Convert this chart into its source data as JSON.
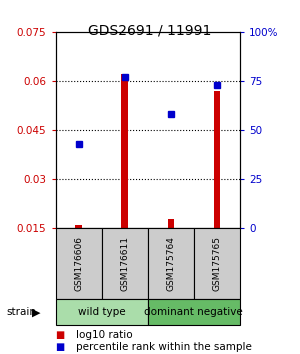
{
  "title": "GDS2691 / 11991",
  "samples": [
    "GSM176606",
    "GSM176611",
    "GSM175764",
    "GSM175765"
  ],
  "groups": [
    {
      "name": "wild type",
      "color": "#90EE90",
      "samples": [
        0,
        1
      ]
    },
    {
      "name": "dominant negative",
      "color": "#66CC66",
      "samples": [
        2,
        3
      ]
    }
  ],
  "log10_ratio": [
    0.016,
    0.062,
    0.018,
    0.057
  ],
  "percentile_rank": [
    0.047,
    0.061,
    0.05,
    0.059
  ],
  "log10_ratio_color": "#CC0000",
  "percentile_rank_color": "#0000CC",
  "ymin": 0.015,
  "ymax": 0.075,
  "yticks_left": [
    0.015,
    0.03,
    0.045,
    0.06,
    0.075
  ],
  "yticks_right": [
    0,
    25,
    50,
    75,
    100
  ],
  "ytick_labels_left": [
    "0.015",
    "0.03",
    "0.045",
    "0.06",
    "0.075"
  ],
  "ytick_labels_right": [
    "0",
    "25",
    "50",
    "75",
    "100%"
  ],
  "bar_bottom": 0.015,
  "bg_color": "#ffffff",
  "label_area_color": "#cccccc",
  "legend_ratio_label": "log10 ratio",
  "legend_percentile_label": "percentile rank within the sample",
  "wild_type_color": "#aaddaa",
  "dominant_negative_color": "#66bb66"
}
